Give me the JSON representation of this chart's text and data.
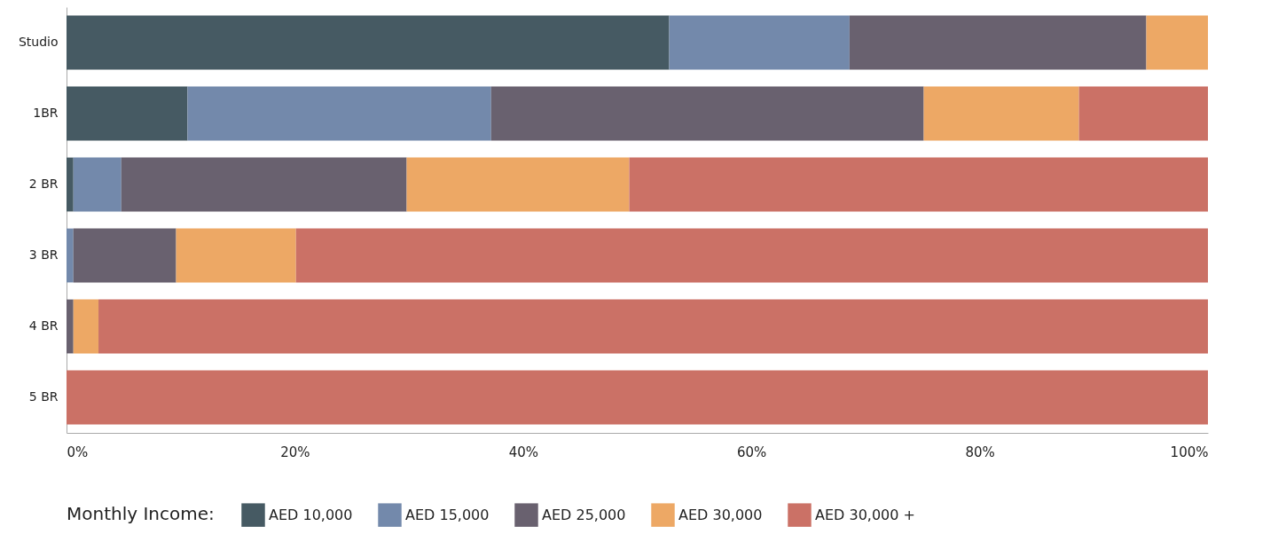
{
  "chart_data": {
    "type": "bar",
    "orientation": "horizontal",
    "stacked": true,
    "legend_title": "Monthly Income:",
    "legend": "bottom",
    "grid": false,
    "categories": [
      "Studio",
      "1BR",
      "2 BR",
      "3 BR",
      "4 BR",
      "5 BR"
    ],
    "series": [
      {
        "name": "AED 10,000",
        "color": "#465a63",
        "values": [
          52.8,
          10.6,
          0.6,
          0,
          0,
          0
        ]
      },
      {
        "name": "AED 15,000",
        "color": "#7389ab",
        "values": [
          15.8,
          26.6,
          4.2,
          0.6,
          0,
          0
        ]
      },
      {
        "name": "AED 25,000",
        "color": "#69616f",
        "values": [
          26.0,
          37.9,
          25.0,
          9.0,
          0.6,
          0
        ]
      },
      {
        "name": "AED 30,000",
        "color": "#eda865",
        "values": [
          5.4,
          13.6,
          19.5,
          10.5,
          2.2,
          0
        ]
      },
      {
        "name": "AED 30,000 +",
        "color": "#cb7166",
        "values": [
          0,
          11.3,
          50.7,
          79.9,
          97.2,
          100
        ]
      }
    ],
    "xlim": [
      0,
      100
    ],
    "xticks": [
      {
        "value": 0,
        "label": "0%"
      },
      {
        "value": 20,
        "label": "20%"
      },
      {
        "value": 40,
        "label": "40%"
      },
      {
        "value": 60,
        "label": "60%"
      },
      {
        "value": 80,
        "label": "80%"
      },
      {
        "value": 100,
        "label": "100%"
      }
    ]
  }
}
